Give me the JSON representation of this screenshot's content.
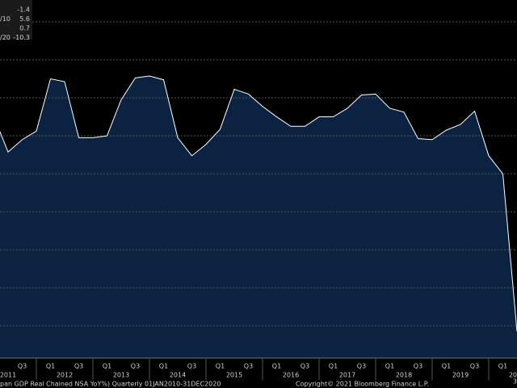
{
  "chart_data": {
    "type": "area",
    "x": [
      2011.25,
      2011.5,
      2011.75,
      2012.0,
      2012.25,
      2012.5,
      2012.75,
      2013.0,
      2013.25,
      2013.5,
      2013.75,
      2014.0,
      2014.25,
      2014.5,
      2014.75,
      2015.0,
      2015.25,
      2015.5,
      2015.75,
      2016.0,
      2016.25,
      2016.5,
      2016.75,
      2017.0,
      2017.25,
      2017.5,
      2017.75,
      2018.0,
      2018.25,
      2018.5,
      2018.75,
      2019.0,
      2019.25,
      2019.5,
      2019.75,
      2020.0,
      2020.25,
      2020.5
    ],
    "values": [
      1.0,
      -0.85,
      -0.2,
      0.25,
      3.0,
      2.85,
      -0.1,
      -0.1,
      0.0,
      1.9,
      3.05,
      3.15,
      2.95,
      -0.1,
      -1.05,
      -0.45,
      0.35,
      2.45,
      2.2,
      1.55,
      1.0,
      0.5,
      0.5,
      1.0,
      1.0,
      1.45,
      2.15,
      2.2,
      1.45,
      1.25,
      -0.15,
      -0.2,
      0.3,
      0.6,
      1.3,
      -1.05,
      -2.0,
      -10.3
    ],
    "color": "#0b2240",
    "line_color": "#ffffff",
    "xlim": [
      2011.357,
      2020.5
    ],
    "ylim": [
      -11.7,
      7.15
    ],
    "yticks": [
      -10,
      -8,
      -6,
      -4,
      -2,
      0,
      2,
      4,
      6
    ],
    "grid": true,
    "xticks": [
      2012,
      2013,
      2014,
      2015,
      2016,
      2017,
      2018,
      2019,
      2020
    ],
    "quarter_labels": [
      {
        "value": 2011.75,
        "label": "Q3"
      },
      {
        "value": 2012.25,
        "label": "Q1"
      },
      {
        "value": 2012.75,
        "label": "Q3"
      },
      {
        "value": 2013.25,
        "label": "Q1"
      },
      {
        "value": 2013.75,
        "label": "Q3"
      },
      {
        "value": 2014.25,
        "label": "Q1"
      },
      {
        "value": 2014.75,
        "label": "Q3"
      },
      {
        "value": 2015.25,
        "label": "Q1"
      },
      {
        "value": 2015.75,
        "label": "Q3"
      },
      {
        "value": 2016.25,
        "label": "Q1"
      },
      {
        "value": 2016.75,
        "label": "Q3"
      },
      {
        "value": 2017.25,
        "label": "Q1"
      },
      {
        "value": 2017.75,
        "label": "Q3"
      },
      {
        "value": 2018.25,
        "label": "Q1"
      },
      {
        "value": 2018.75,
        "label": "Q3"
      },
      {
        "value": 2019.25,
        "label": "Q1"
      },
      {
        "value": 2019.75,
        "label": "Q3"
      },
      {
        "value": 2020.25,
        "label": "Q1"
      }
    ],
    "year_labels": [
      {
        "value": 2011.5,
        "label": "2011"
      },
      {
        "value": 2012.5,
        "label": "2012"
      },
      {
        "value": 2013.5,
        "label": "2013"
      },
      {
        "value": 2014.5,
        "label": "2014"
      },
      {
        "value": 2015.5,
        "label": "2015"
      },
      {
        "value": 2016.5,
        "label": "2016"
      },
      {
        "value": 2017.5,
        "label": "2017"
      },
      {
        "value": 2018.5,
        "label": "2018"
      },
      {
        "value": 2019.5,
        "label": "2019"
      },
      {
        "value": 2020.5,
        "label": "20"
      }
    ],
    "stats": [
      {
        "value": -1.4
      },
      {
        "name": "/10",
        "value": 5.6
      },
      {
        "value": 0.7
      },
      {
        "name": "/20",
        "value": -10.3
      }
    ],
    "footer_left": "pan GDP Real Chained NSA YoY%)  Quarterly 01JAN2010-31DEC2020",
    "footer_copyright": "Copyright© 2021 Bloomberg Finance L.P.",
    "footer_right": "3"
  }
}
